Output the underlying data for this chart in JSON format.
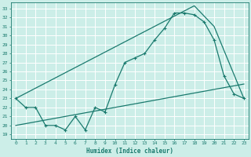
{
  "xlabel": "Humidex (Indice chaleur)",
  "background_color": "#cceee8",
  "grid_color": "#b0ddd8",
  "line_color": "#1a7a6e",
  "x_ticks": [
    0,
    1,
    2,
    3,
    4,
    5,
    6,
    7,
    8,
    9,
    10,
    11,
    12,
    13,
    14,
    15,
    16,
    17,
    18,
    19,
    20,
    21,
    22,
    23
  ],
  "y_ticks": [
    19,
    20,
    21,
    22,
    23,
    24,
    25,
    26,
    27,
    28,
    29,
    30,
    31,
    32,
    33
  ],
  "xlim": [
    -0.5,
    23.5
  ],
  "ylim": [
    18.5,
    33.7
  ],
  "line1_x": [
    0,
    1,
    2,
    3,
    4,
    5,
    6,
    7,
    8,
    9,
    10,
    11,
    12,
    13,
    14,
    15,
    16,
    17,
    18,
    19,
    20,
    21,
    22,
    23
  ],
  "line1_y": [
    23.0,
    22.0,
    22.0,
    20.0,
    20.0,
    19.5,
    21.0,
    19.5,
    22.0,
    21.5,
    24.5,
    27.0,
    27.5,
    28.0,
    29.5,
    30.8,
    32.5,
    32.5,
    32.3,
    31.5,
    29.5,
    25.5,
    23.5,
    23.0
  ],
  "line2_x": [
    0,
    1,
    2,
    3,
    4,
    5,
    6,
    7,
    8,
    9,
    10,
    11,
    12,
    13,
    14,
    15,
    16,
    17,
    18,
    19,
    20,
    21,
    22,
    23
  ],
  "line2_y": [
    20.0,
    20.2,
    20.4,
    20.6,
    20.8,
    21.0,
    21.2,
    21.4,
    21.6,
    21.8,
    22.0,
    22.2,
    22.4,
    22.6,
    22.8,
    23.0,
    23.2,
    23.4,
    23.6,
    23.8,
    24.0,
    24.2,
    24.4,
    24.6
  ],
  "line3_x": [
    0,
    18,
    20,
    23
  ],
  "line3_y": [
    23.0,
    33.3,
    31.0,
    23.0
  ]
}
